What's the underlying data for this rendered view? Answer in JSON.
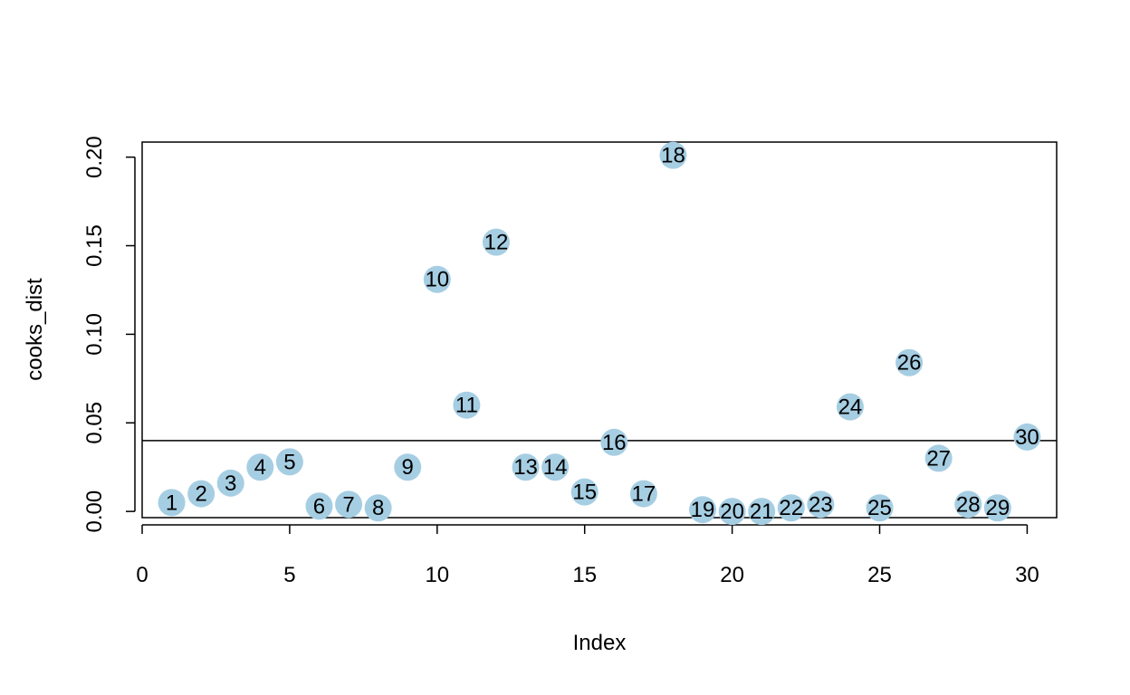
{
  "chart_data": {
    "type": "scatter",
    "xlabel": "Index",
    "ylabel": "cooks_dist",
    "xlim": [
      0,
      31
    ],
    "ylim": [
      -0.0035,
      0.2085
    ],
    "xticks": [
      "0",
      "5",
      "10",
      "15",
      "20",
      "25",
      "30"
    ],
    "yticks": [
      "0.00",
      "0.05",
      "0.10",
      "0.15",
      "0.20"
    ],
    "hline": 0.04,
    "point_color": "#a6cee3",
    "points": [
      {
        "x": 1,
        "y": 0.005,
        "label": "1"
      },
      {
        "x": 2,
        "y": 0.01,
        "label": "2"
      },
      {
        "x": 3,
        "y": 0.016,
        "label": "3"
      },
      {
        "x": 4,
        "y": 0.025,
        "label": "4"
      },
      {
        "x": 5,
        "y": 0.028,
        "label": "5"
      },
      {
        "x": 6,
        "y": 0.003,
        "label": "6"
      },
      {
        "x": 7,
        "y": 0.004,
        "label": "7"
      },
      {
        "x": 8,
        "y": 0.002,
        "label": "8"
      },
      {
        "x": 9,
        "y": 0.025,
        "label": "9"
      },
      {
        "x": 10,
        "y": 0.131,
        "label": "10"
      },
      {
        "x": 11,
        "y": 0.06,
        "label": "11"
      },
      {
        "x": 12,
        "y": 0.152,
        "label": "12"
      },
      {
        "x": 13,
        "y": 0.025,
        "label": "13"
      },
      {
        "x": 14,
        "y": 0.025,
        "label": "14"
      },
      {
        "x": 15,
        "y": 0.011,
        "label": "15"
      },
      {
        "x": 16,
        "y": 0.039,
        "label": "16"
      },
      {
        "x": 17,
        "y": 0.01,
        "label": "17"
      },
      {
        "x": 18,
        "y": 0.201,
        "label": "18"
      },
      {
        "x": 19,
        "y": 0.001,
        "label": "19"
      },
      {
        "x": 20,
        "y": 0.0,
        "label": "20"
      },
      {
        "x": 21,
        "y": 0.0,
        "label": "21"
      },
      {
        "x": 22,
        "y": 0.002,
        "label": "22"
      },
      {
        "x": 23,
        "y": 0.004,
        "label": "23"
      },
      {
        "x": 24,
        "y": 0.059,
        "label": "24"
      },
      {
        "x": 25,
        "y": 0.002,
        "label": "25"
      },
      {
        "x": 26,
        "y": 0.084,
        "label": "26"
      },
      {
        "x": 27,
        "y": 0.03,
        "label": "27"
      },
      {
        "x": 28,
        "y": 0.004,
        "label": "28"
      },
      {
        "x": 29,
        "y": 0.002,
        "label": "29"
      },
      {
        "x": 30,
        "y": 0.042,
        "label": "30"
      }
    ]
  }
}
